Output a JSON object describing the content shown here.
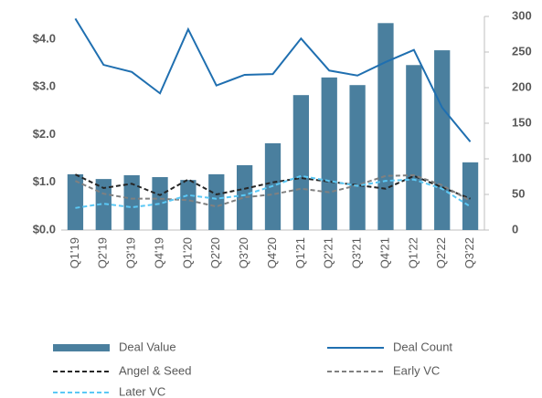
{
  "chart_data": {
    "type": "combo",
    "categories": [
      "Q1'19",
      "Q2'19",
      "Q3'19",
      "Q4'19",
      "Q1'20",
      "Q2'20",
      "Q3'20",
      "Q4'20",
      "Q1'21",
      "Q2'21",
      "Q3'21",
      "Q4'21",
      "Q1'22",
      "Q2'22",
      "Q3'22"
    ],
    "ylim": [
      0,
      4.48
    ],
    "yticks": [
      {
        "value": 0,
        "label": "$0.0"
      },
      {
        "value": 1,
        "label": "$1.0"
      },
      {
        "value": 2,
        "label": "$2.0"
      },
      {
        "value": 3,
        "label": "$3.0"
      },
      {
        "value": 4,
        "label": "$4.0"
      }
    ],
    "y2lim": [
      0,
      300
    ],
    "y2ticks": [
      0,
      50,
      100,
      150,
      200,
      250,
      300
    ],
    "series": [
      {
        "name": "Deal Value",
        "type": "bar",
        "color": "#4a7f9e",
        "values": [
          1.17,
          1.07,
          1.15,
          1.11,
          1.05,
          1.17,
          1.36,
          1.82,
          2.83,
          3.2,
          3.04,
          4.34,
          3.46,
          3.77,
          1.42
        ]
      },
      {
        "name": "Deal Count",
        "type": "line",
        "axis": "y2",
        "style": "solid",
        "color": "#1f6fb0",
        "values": [
          297,
          232,
          222,
          192,
          282,
          203,
          218,
          219,
          269,
          224,
          217,
          236,
          253,
          172,
          124
        ]
      },
      {
        "name": "Angel & Seed",
        "type": "line",
        "axis": "y2",
        "style": "dashed",
        "color": "#262626",
        "values": [
          78,
          59,
          65,
          49,
          71,
          50,
          58,
          67,
          73,
          68,
          63,
          58,
          76,
          60,
          44
        ]
      },
      {
        "name": "Early VC",
        "type": "line",
        "axis": "y2",
        "style": "dashed",
        "color": "#808080",
        "values": [
          69,
          51,
          44,
          44,
          42,
          33,
          46,
          50,
          58,
          53,
          63,
          76,
          77,
          63,
          41
        ]
      },
      {
        "name": "Later VC",
        "type": "line",
        "axis": "y2",
        "style": "dashed",
        "color": "#5bc8f5",
        "values": [
          31,
          37,
          32,
          37,
          49,
          44,
          49,
          62,
          76,
          69,
          62,
          69,
          71,
          58,
          33
        ]
      }
    ]
  }
}
